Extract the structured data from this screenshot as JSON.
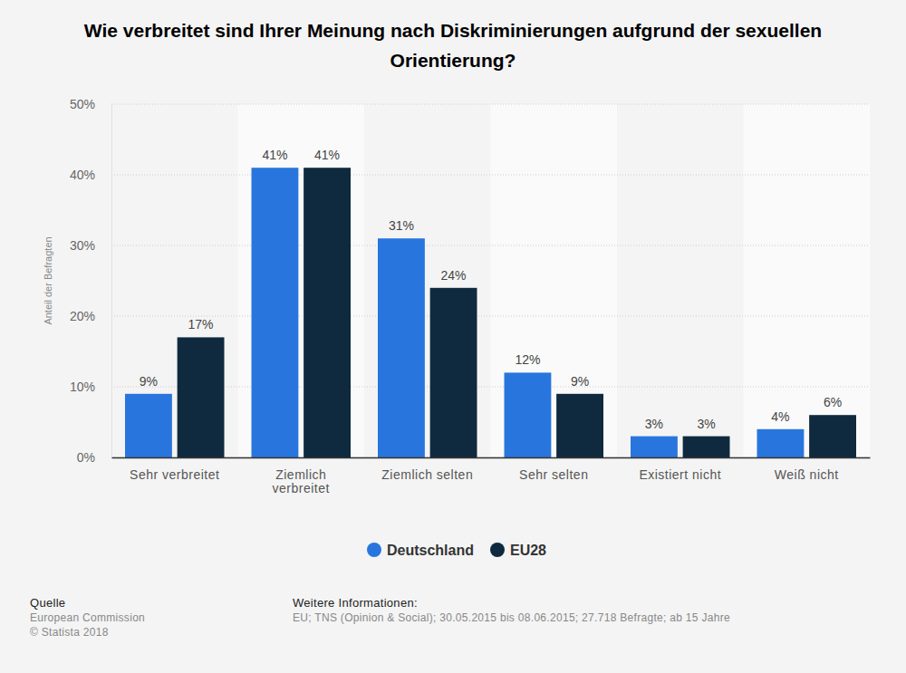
{
  "chart_data": {
    "type": "bar",
    "title": "Wie verbreitet sind Ihrer Meinung nach Diskriminierungen aufgrund der sexuellen Orientierung?",
    "y_label": "Anteil der Befragten",
    "categories": [
      "Sehr verbreitet",
      "Ziemlich verbreitet",
      "Ziemlich selten",
      "Sehr selten",
      "Existiert nicht",
      "Weiß nicht"
    ],
    "series": [
      {
        "name": "Deutschland",
        "color": "#2876dd",
        "values": [
          9,
          41,
          31,
          12,
          3,
          4
        ],
        "value_labels": [
          "9%",
          "41%",
          "31%",
          "12%",
          "3%",
          "4%"
        ]
      },
      {
        "name": "EU28",
        "color": "#0f2a3f",
        "values": [
          17,
          41,
          24,
          9,
          3,
          6
        ],
        "value_labels": [
          "17%",
          "41%",
          "24%",
          "9%",
          "3%",
          "6%"
        ]
      }
    ],
    "ylim": [
      0,
      50
    ],
    "yticks": [
      {
        "value": 0,
        "label": "0%"
      },
      {
        "value": 10,
        "label": "10%"
      },
      {
        "value": 20,
        "label": "20%"
      },
      {
        "value": 30,
        "label": "30%"
      },
      {
        "value": 40,
        "label": "40%"
      },
      {
        "value": 50,
        "label": "50%"
      }
    ],
    "grid": true,
    "legend": "bottom",
    "data_labels": true,
    "annotations": [
      "Quelle",
      "European Commission",
      "© Statista 2018",
      "Weitere Informationen:",
      "EU; TNS (Opinion & Social); 30.05.2015 bis 08.06.2015; 27.718 Befragte; ab 15 Jahre"
    ]
  }
}
